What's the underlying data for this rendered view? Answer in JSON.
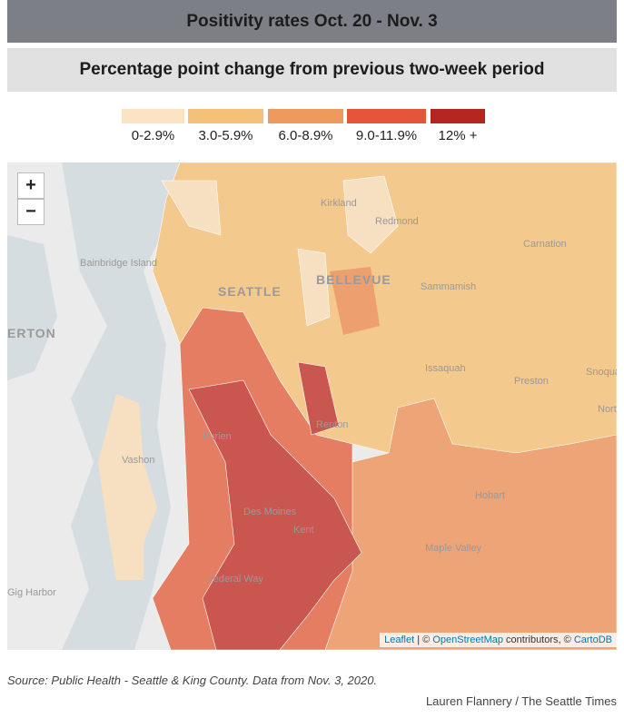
{
  "header": {
    "title": "Positivity rates Oct. 20 - Nov. 3",
    "subtitle": "Percentage point change from previous two-week period"
  },
  "legend": {
    "items": [
      {
        "label": "0-2.9%",
        "color": "#fbe3c3"
      },
      {
        "label": "3.0-5.9%",
        "color": "#f5c07a"
      },
      {
        "label": "6.0-8.9%",
        "color": "#ee9a5c"
      },
      {
        "label": "9.0-11.9%",
        "color": "#e4553a"
      },
      {
        "label": "12% +",
        "color": "#b42620"
      }
    ]
  },
  "map": {
    "zoom": {
      "in": "+",
      "out": "−"
    },
    "places": [
      "Kirkland",
      "Redmond",
      "Carnation",
      "Bainbridge Island",
      "SEATTLE",
      "BELLEVUE",
      "Sammamish",
      "ERTON",
      "Issaquah",
      "Preston",
      "Snoqualmie",
      "North",
      "Renton",
      "Burien",
      "Vashon",
      "Hobart",
      "Des Moines",
      "Kent",
      "Maple Valley",
      "Gig Harbor",
      "Federal Way"
    ],
    "attribution": {
      "leaflet": "Leaflet",
      "sep": "| ©",
      "osm": "OpenStreetMap",
      "mid": "contributors, ©",
      "carto": "CartoDB"
    }
  },
  "footer": {
    "source": "Source: Public Health - Seattle & King County. Data from Nov. 3, 2020.",
    "credit": "Lauren Flannery / The Seattle Times"
  }
}
